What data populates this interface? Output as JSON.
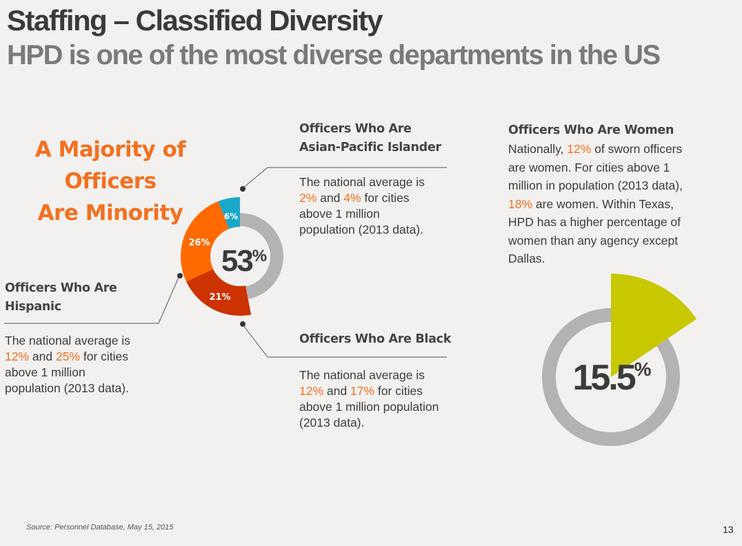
{
  "header": {
    "title": "Staffing – Classified Diversity",
    "subtitle": "HPD is one of the most diverse departments in the US"
  },
  "headline": {
    "line1": "A Majority of",
    "line2": "Officers",
    "line3": "Are Minority"
  },
  "asian": {
    "title_line1": "Officers Who Are",
    "title_line2": "Asian-Pacific Islander",
    "t1": "The national average is",
    "v1": "2%",
    "t2": " and ",
    "v2": "4%",
    "t3": " for cities",
    "t4": "above 1 million",
    "t5": "population (2013 data)."
  },
  "hispanic": {
    "title_line1": "Officers Who Are",
    "title_line2": "Hispanic",
    "t1": "The national average is",
    "v1": "12%",
    "t2": " and ",
    "v2": "25%",
    "t3": " for cities",
    "t4": "above 1 million",
    "t5": "population (2013 data)."
  },
  "black": {
    "title": "Officers Who Are Black",
    "t1": "The national average is",
    "v1": "12%",
    "t2": " and ",
    "v2": "17%",
    "t3": " for cities",
    "t4": "above 1 million population",
    "t5": "(2013 data)."
  },
  "women": {
    "title": "Officers Who Are Women",
    "t1a": "Nationally, ",
    "v1": "12%",
    "t1b": " of sworn officers",
    "t2": "are women.  For cities above 1",
    "t3": "million in population (2013 data),",
    "v2": "18%",
    "t4a": " are women. Within Texas,",
    "t5": "HPD has a higher percentage of",
    "t6": "women than any agency except",
    "t7": "Dallas."
  },
  "chart_data": [
    {
      "type": "pie",
      "center_number": "53",
      "center_unit": "%",
      "labels": [
        "6%",
        "26%",
        "21%"
      ],
      "values": [
        6,
        26,
        21
      ],
      "remainder": 47,
      "colors": [
        "#1aa7c9",
        "#ff6a00",
        "#cc3300",
        "#b3b3b3"
      ]
    },
    {
      "type": "pie",
      "center_number": "15.5",
      "center_unit": "%",
      "values": [
        15.5
      ],
      "remainder": 84.5,
      "colors": [
        "#c8c800",
        "#b3b3b3"
      ]
    }
  ],
  "footer": {
    "source": "Source: Personnel Database, May 15, 2015",
    "page": "13"
  }
}
